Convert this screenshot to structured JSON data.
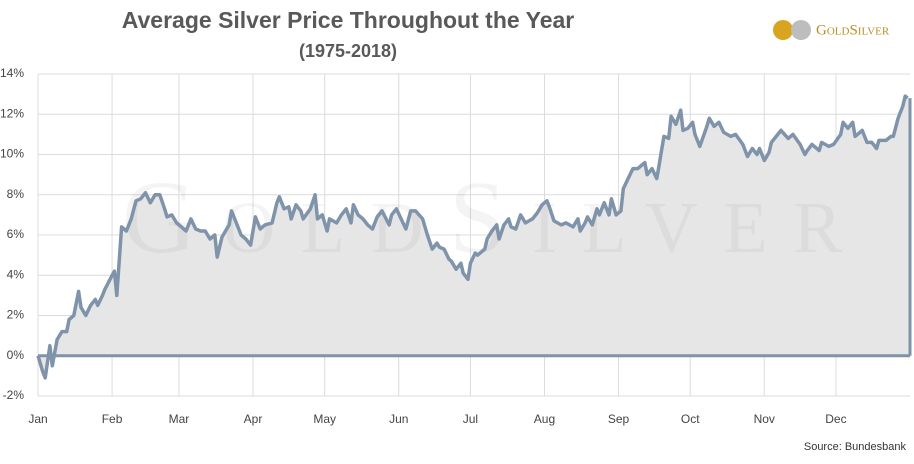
{
  "chart_data": {
    "type": "area",
    "title": "Average Silver Price Throughout the Year",
    "subtitle": "(1975-2018)",
    "source": "Source: Bundesbank",
    "logo": "GoldSilver",
    "watermark": "GoldSilver",
    "color": "#7f93ab",
    "fill": "#e6e6e6",
    "grid": true,
    "xlim": [
      0,
      365
    ],
    "xticks": [
      {
        "value": 0,
        "label": "Jan"
      },
      {
        "value": 31,
        "label": "Feb"
      },
      {
        "value": 59,
        "label": "Mar"
      },
      {
        "value": 90,
        "label": "Apr"
      },
      {
        "value": 120,
        "label": "May"
      },
      {
        "value": 151,
        "label": "Jun"
      },
      {
        "value": 181,
        "label": "Jul"
      },
      {
        "value": 212,
        "label": "Aug"
      },
      {
        "value": 243,
        "label": "Sep"
      },
      {
        "value": 273,
        "label": "Oct"
      },
      {
        "value": 304,
        "label": "Nov"
      },
      {
        "value": 334,
        "label": "Dec"
      }
    ],
    "ylim": [
      -2,
      14
    ],
    "yticks": [
      {
        "value": -2,
        "label": "-2%"
      },
      {
        "value": 0,
        "label": "0%"
      },
      {
        "value": 2,
        "label": "2%"
      },
      {
        "value": 4,
        "label": "4%"
      },
      {
        "value": 6,
        "label": "6%"
      },
      {
        "value": 8,
        "label": "8%"
      },
      {
        "value": 10,
        "label": "10%"
      },
      {
        "value": 12,
        "label": "12%"
      },
      {
        "value": 14,
        "label": "14%"
      }
    ],
    "x": [
      0,
      2,
      3,
      5,
      6,
      8,
      10,
      12,
      13,
      15,
      17,
      18,
      20,
      22,
      24,
      25,
      27,
      28,
      31,
      32,
      33,
      35,
      37,
      39,
      41,
      43,
      45,
      47,
      49,
      51,
      53,
      54,
      56,
      58,
      59,
      62,
      64,
      66,
      68,
      70,
      72,
      74,
      75,
      77,
      79,
      80,
      81,
      83,
      85,
      87,
      89,
      91,
      93,
      95,
      98,
      100,
      101,
      103,
      105,
      106,
      108,
      110,
      111,
      114,
      116,
      117,
      119,
      121,
      122,
      125,
      127,
      129,
      131,
      132,
      134,
      136,
      138,
      140,
      142,
      144,
      147,
      148,
      150,
      152,
      154,
      156,
      158,
      161,
      163,
      165,
      167,
      168,
      170,
      172,
      173,
      175,
      177,
      178,
      180,
      181,
      183,
      184,
      187,
      188,
      190,
      192,
      193,
      195,
      197,
      198,
      200,
      202,
      204,
      207,
      209,
      211,
      213,
      214,
      216,
      219,
      221,
      224,
      226,
      227,
      229,
      230,
      232,
      234,
      235,
      237,
      239,
      240,
      242,
      244,
      245,
      247,
      249,
      251,
      254,
      255,
      257,
      259,
      260,
      262,
      264,
      265,
      267,
      269,
      270,
      272,
      274,
      275,
      277,
      280,
      281,
      283,
      285,
      287,
      290,
      292,
      295,
      297,
      299,
      301,
      302,
      304,
      306,
      307,
      309,
      311,
      314,
      316,
      319,
      321,
      322,
      324,
      327,
      328,
      331,
      333,
      336,
      337,
      339,
      341,
      342,
      345,
      347,
      349,
      351,
      352,
      355,
      357,
      358,
      360,
      362,
      363,
      364
    ],
    "values": [
      0,
      -0.8,
      -1.1,
      0.5,
      -0.5,
      0.8,
      1.2,
      1.2,
      1.8,
      2.0,
      3.2,
      2.4,
      2.0,
      2.5,
      2.8,
      2.5,
      3.0,
      3.3,
      4.0,
      4.2,
      3.0,
      6.4,
      6.2,
      6.8,
      7.7,
      7.8,
      8.1,
      7.6,
      8.0,
      8.0,
      7.3,
      6.9,
      7.0,
      6.6,
      6.5,
      6.2,
      6.8,
      6.3,
      6.2,
      6.2,
      5.8,
      6.0,
      4.9,
      5.9,
      6.3,
      6.5,
      7.2,
      6.6,
      6.0,
      5.8,
      5.5,
      6.9,
      6.3,
      6.5,
      6.6,
      7.6,
      7.9,
      7.3,
      7.4,
      6.8,
      7.5,
      7.2,
      6.8,
      7.3,
      8.0,
      6.8,
      7.0,
      6.2,
      6.8,
      6.6,
      7.0,
      7.3,
      6.6,
      7.5,
      7.0,
      6.8,
      6.5,
      6.3,
      6.9,
      7.2,
      6.5,
      7.0,
      7.3,
      6.8,
      6.3,
      7.2,
      7.2,
      6.8,
      6.0,
      5.3,
      5.6,
      5.4,
      5.3,
      4.8,
      4.7,
      4.3,
      4.6,
      4.1,
      3.8,
      4.6,
      5.1,
      5.0,
      5.3,
      5.8,
      6.2,
      6.5,
      5.8,
      6.5,
      6.8,
      6.4,
      6.3,
      7.0,
      6.6,
      6.8,
      7.1,
      7.5,
      7.7,
      7.4,
      6.7,
      6.5,
      6.6,
      6.4,
      6.8,
      6.2,
      6.6,
      6.9,
      6.5,
      7.3,
      7.0,
      7.6,
      7.0,
      7.8,
      7.0,
      7.2,
      8.3,
      8.8,
      9.3,
      9.3,
      9.6,
      9.0,
      9.3,
      8.8,
      9.5,
      10.9,
      10.8,
      11.9,
      11.5,
      12.2,
      11.2,
      11.3,
      11.6,
      11.0,
      10.4,
      11.4,
      11.8,
      11.4,
      11.6,
      11.1,
      10.9,
      11.0,
      10.5,
      9.9,
      10.3,
      10.0,
      10.3,
      9.7,
      10.1,
      10.6,
      10.9,
      11.2,
      10.8,
      11.0,
      10.5,
      10.0,
      10.2,
      10.5,
      10.2,
      10.6,
      10.4,
      10.5,
      11.0,
      11.6,
      11.3,
      11.6,
      10.9,
      11.2,
      10.6,
      10.6,
      10.3,
      10.7,
      10.7,
      10.9,
      10.9,
      11.8,
      12.4,
      12.9,
      12.8
    ]
  }
}
